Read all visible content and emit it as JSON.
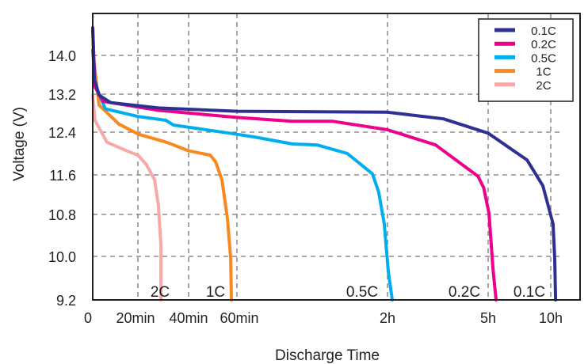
{
  "chart_data": {
    "type": "line",
    "title": "",
    "xlabel": "Discharge Time",
    "ylabel": "Voltage (V)",
    "x_unit": "minutes",
    "x_scale": "nonlinear (piecewise between ticks)",
    "y_scale": "nonlinear (piecewise between ticks)",
    "xticks": [
      {
        "value": 0,
        "label": "0"
      },
      {
        "value": 20,
        "label": "20min"
      },
      {
        "value": 40,
        "label": "40min"
      },
      {
        "value": 60,
        "label": "60min"
      },
      {
        "value": 120,
        "label": "2h"
      },
      {
        "value": 300,
        "label": "5h"
      },
      {
        "value": 600,
        "label": "10h"
      }
    ],
    "yticks": [
      {
        "value": 14.0,
        "label": "14.0"
      },
      {
        "value": 13.2,
        "label": "13.2"
      },
      {
        "value": 12.4,
        "label": "12.4"
      },
      {
        "value": 11.6,
        "label": "11.6"
      },
      {
        "value": 10.8,
        "label": "10.8"
      },
      {
        "value": 10.0,
        "label": "10.0"
      },
      {
        "value": 9.2,
        "label": "9.2"
      }
    ],
    "ylim": [
      9.2,
      14.6
    ],
    "grid": true,
    "legend_position": "top-right",
    "series": [
      {
        "name": "0.1C",
        "color": "#2e3192",
        "end_label": "0.1C",
        "points": [
          [
            0,
            14.57
          ],
          [
            0.7,
            13.51
          ],
          [
            2.8,
            13.18
          ],
          [
            8,
            13.02
          ],
          [
            28,
            12.91
          ],
          [
            60,
            12.84
          ],
          [
            120,
            12.82
          ],
          [
            220,
            12.68
          ],
          [
            300,
            12.38
          ],
          [
            486,
            11.88
          ],
          [
            562,
            11.38
          ],
          [
            611,
            10.62
          ],
          [
            619,
            9.96
          ],
          [
            623,
            9.2
          ]
        ]
      },
      {
        "name": "0.2C",
        "color": "#ec008c",
        "end_label": "0.2C",
        "points": [
          [
            0,
            14.57
          ],
          [
            1,
            13.35
          ],
          [
            4.6,
            13.05
          ],
          [
            28,
            12.86
          ],
          [
            60,
            12.71
          ],
          [
            82,
            12.63
          ],
          [
            98,
            12.63
          ],
          [
            120,
            12.45
          ],
          [
            206,
            12.16
          ],
          [
            282,
            11.57
          ],
          [
            292,
            11.34
          ],
          [
            304,
            10.82
          ],
          [
            323,
            9.77
          ],
          [
            338,
            9.2
          ]
        ]
      },
      {
        "name": "0.5C",
        "color": "#00aeef",
        "end_label": "0.5C",
        "points": [
          [
            0,
            14.11
          ],
          [
            1,
            13.4
          ],
          [
            5.6,
            12.89
          ],
          [
            20,
            12.73
          ],
          [
            31,
            12.65
          ],
          [
            34,
            12.55
          ],
          [
            60,
            12.36
          ],
          [
            67,
            12.31
          ],
          [
            82,
            12.18
          ],
          [
            92,
            12.16
          ],
          [
            104,
            12.0
          ],
          [
            114,
            11.62
          ],
          [
            116.5,
            11.25
          ],
          [
            118.7,
            10.62
          ],
          [
            121.4,
            9.72
          ],
          [
            128.5,
            9.2
          ]
        ]
      },
      {
        "name": "1C",
        "color": "#f7891f",
        "end_label": "1C",
        "points": [
          [
            0,
            14.11
          ],
          [
            2.8,
            12.97
          ],
          [
            11.6,
            12.57
          ],
          [
            20.3,
            12.36
          ],
          [
            31.3,
            12.21
          ],
          [
            40,
            12.05
          ],
          [
            48.9,
            11.97
          ],
          [
            51.1,
            11.85
          ],
          [
            53.8,
            11.5
          ],
          [
            56.1,
            10.71
          ],
          [
            57.4,
            9.96
          ],
          [
            57.7,
            9.2
          ]
        ]
      },
      {
        "name": "2C",
        "color": "#f7a9a8",
        "end_label": "2C",
        "points": [
          [
            0,
            13.18
          ],
          [
            1,
            12.65
          ],
          [
            6.3,
            12.21
          ],
          [
            15.1,
            12.05
          ],
          [
            20,
            11.97
          ],
          [
            23.4,
            11.79
          ],
          [
            26.6,
            11.5
          ],
          [
            28.1,
            10.98
          ],
          [
            29.1,
            10.2
          ],
          [
            29.1,
            9.2
          ]
        ]
      }
    ]
  }
}
